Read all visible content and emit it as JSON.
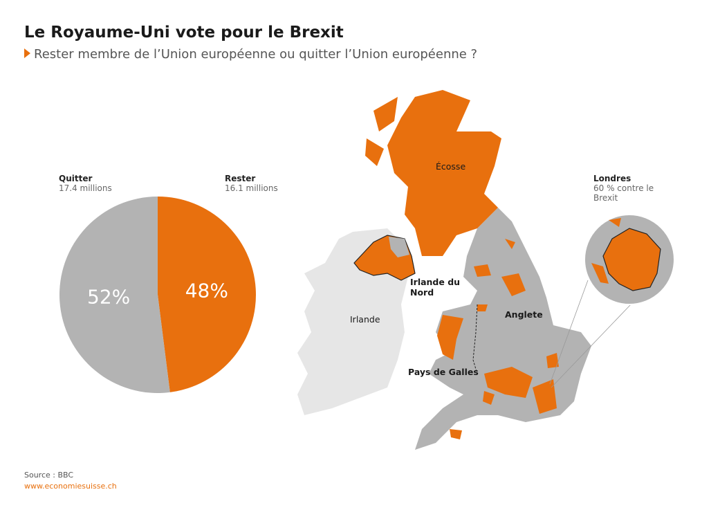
{
  "header": {
    "title": "Le Royaume-Uni vote pour le Brexit",
    "subtitle": "Rester membre de l’Union européenne ou quitter l’Union européenne ?"
  },
  "chart_data": {
    "type": "pie",
    "categories": [
      "Quitter",
      "Rester"
    ],
    "category_details": [
      "17.4 millions",
      "16.1 millions"
    ],
    "values": [
      52,
      48
    ],
    "value_labels": [
      "52%",
      "48%"
    ],
    "colors": [
      "#b3b3b3",
      "#e8700e"
    ]
  },
  "map": {
    "labels": [
      "Écosse",
      "Irlande du Nord",
      "Irlande",
      "Anglete",
      "Pays de Galles"
    ],
    "inset_title": "Londres",
    "inset_note": "60 % contre le Brexit"
  },
  "footer": {
    "source": "Source : BBC",
    "url": "www.economiesuisse.ch"
  }
}
